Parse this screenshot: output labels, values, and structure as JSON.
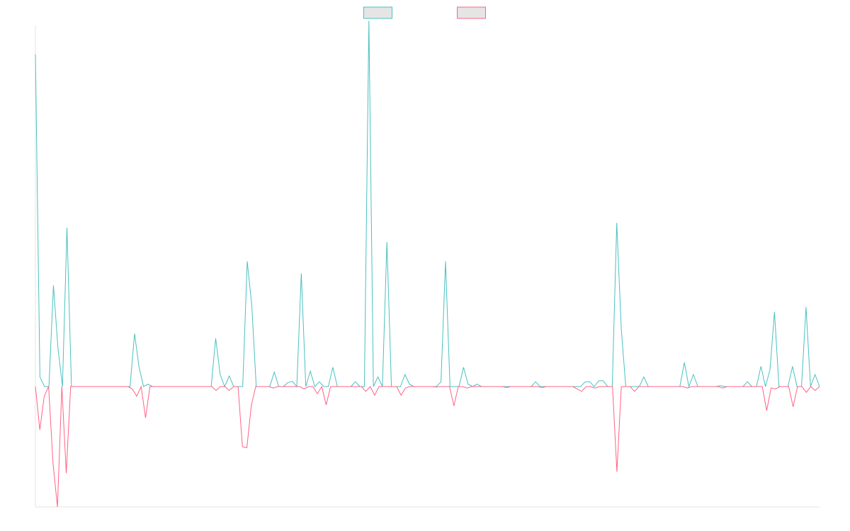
{
  "chart_data": {
    "type": "line",
    "title": "",
    "xlabel": "",
    "ylabel": "",
    "ylim": [
      -25,
      75
    ],
    "grid": false,
    "legend_position": "top-center",
    "series": [
      {
        "color": "#4bc0c0",
        "fill": "#e5e5e5",
        "values": [
          69,
          2,
          0,
          0,
          21,
          8,
          0,
          33,
          0,
          0,
          0,
          0,
          0,
          0,
          0,
          0,
          0,
          0,
          0,
          0,
          0,
          0,
          11,
          4,
          0,
          0.5,
          0,
          0,
          0,
          0,
          0,
          0,
          0,
          0,
          0,
          0,
          0,
          0,
          0,
          0,
          10,
          2.5,
          0,
          2.2,
          0,
          0,
          0,
          26,
          17,
          0,
          0,
          0,
          0,
          3,
          0,
          0,
          0.8,
          1.1,
          0,
          23.5,
          0,
          3.2,
          0,
          1,
          0,
          0,
          4,
          0,
          0,
          0,
          0,
          1,
          0,
          0,
          76,
          0,
          2,
          0,
          30,
          0,
          0,
          0,
          2.5,
          0.5,
          0,
          0,
          0,
          0,
          0,
          0,
          1,
          26,
          0,
          0,
          0,
          4,
          0.5,
          0,
          0.5,
          0,
          0,
          0,
          0,
          0,
          0,
          0,
          0,
          0,
          0,
          0,
          0,
          1,
          0,
          0,
          0,
          0,
          0,
          0,
          0,
          0,
          0,
          0,
          1,
          1,
          0,
          1.2,
          1.2,
          0,
          0,
          34,
          12,
          0,
          0,
          0,
          0,
          2,
          0,
          0,
          0,
          0,
          0,
          0,
          0,
          0,
          5,
          0,
          2.5,
          0,
          0,
          0,
          0,
          0,
          0.2,
          0,
          0,
          0,
          0,
          0,
          1,
          0,
          0,
          4.2,
          0,
          3.5,
          15.5,
          0,
          0,
          0,
          4.2,
          0,
          0,
          16.5,
          0,
          2.5,
          0
        ]
      },
      {
        "color": "#ff6384",
        "fill": "#e5e5e5",
        "values": [
          0,
          -9,
          -2,
          0,
          -16,
          -25,
          0,
          -18,
          0,
          0,
          0,
          0,
          0,
          0,
          0,
          0,
          0,
          0,
          0,
          0,
          0,
          0,
          -0.5,
          -2,
          0,
          -6.5,
          0,
          0,
          0,
          0,
          0,
          0,
          0,
          0,
          0,
          0,
          0,
          0,
          0,
          0,
          0,
          -0.8,
          0,
          0,
          -0.8,
          0,
          0,
          -12.5,
          -12.7,
          -4,
          0,
          0,
          0,
          0,
          -0.3,
          0,
          0,
          0,
          0,
          0,
          0,
          -0.5,
          0,
          0,
          -1.5,
          0,
          -3.8,
          0,
          0,
          0,
          0,
          0,
          0,
          0,
          0,
          -1,
          0,
          -1.8,
          0,
          0,
          0,
          0,
          0,
          -1.8,
          -0.3,
          0,
          0,
          0,
          0,
          0,
          0,
          -0.1,
          0,
          0,
          0,
          -4,
          0,
          0,
          -0.3,
          0,
          0,
          0,
          0,
          0,
          0,
          0,
          0,
          -0.2,
          0,
          0,
          0,
          0,
          0,
          0,
          0,
          -0.2,
          0,
          0,
          0,
          0,
          0,
          0,
          0,
          -0.5,
          -1,
          0,
          0,
          -0.3,
          0,
          0,
          0,
          0,
          -17.7,
          0,
          0,
          0,
          -1,
          0,
          0,
          0,
          0,
          0,
          0,
          0,
          0,
          0,
          0,
          0,
          -0.3,
          0,
          0,
          0,
          0,
          0,
          0,
          0,
          -0.3,
          0,
          0,
          0,
          0,
          0,
          0,
          0,
          0,
          0,
          -5,
          -0.3,
          -0.5,
          0,
          0,
          0,
          -4.2,
          0,
          0,
          -1.2,
          0,
          -0.8,
          0
        ]
      }
    ]
  }
}
